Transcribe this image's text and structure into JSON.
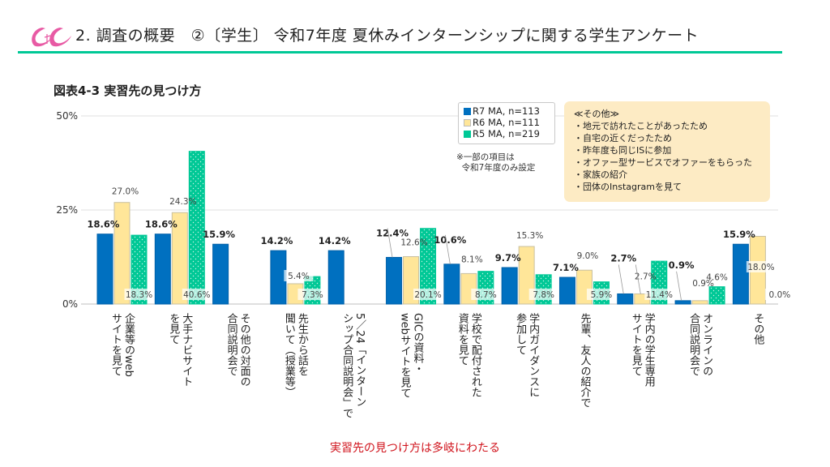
{
  "header": {
    "title": "2. 調査の概要　②〔学生〕 令和7年度  夏休みインターンシップに関する学生アンケート",
    "logo_icon": "pink-swirl-logo-icon"
  },
  "figure_title": "図表4-3  実習先の見つけ方",
  "legend": {
    "items": [
      {
        "label": "R7 MA, n=113",
        "color": "#0070c0"
      },
      {
        "label": "R6 MA, n=111",
        "color": "#ffe699"
      },
      {
        "label": "R5 MA, n=219",
        "color": "#00c896"
      }
    ]
  },
  "note": "※一部の項目は\n  令和7年度のみ設定",
  "other_box": {
    "title": "≪その他≫",
    "items": [
      "・地元で訪れたことがあったため",
      "・自宅の近くだったため",
      "・昨年度も同じISに参加",
      "・オファー型サービスでオファーをもらった",
      "・家族の紹介",
      "・団体のInstagramを見て"
    ]
  },
  "bottom_note": "実習先の見つけ方は多岐にわたる",
  "chart_data": {
    "type": "bar",
    "title": "図表4-3 実習先の見つけ方",
    "xlabel": "",
    "ylabel": "",
    "ylim": [
      0,
      50
    ],
    "yticks": [
      "0%",
      "25%",
      "50%"
    ],
    "ytick_values": [
      0,
      25,
      50
    ],
    "grid": true,
    "legend_position": "top-right",
    "categories": [
      "企業等のweb\nサイトを見て",
      "大手ナビサイト\nを見て",
      "その他の対面の\n合同説明会で",
      "先生から話を\n聞いて（授業等）",
      "5／24「インターン\nシップ合同説明会」で",
      "GICの資料・\nwebサイトを見て",
      "学校で配付された\n資料を見て",
      "学内ガイダンスに\n参加して",
      "先輩、友人の紹介で",
      "学内の学生専用\nサイトを見て",
      "オンラインの\n合同説明会で",
      "その他"
    ],
    "series": [
      {
        "name": "R7 MA, n=113",
        "color": "#0070c0",
        "values": [
          18.6,
          18.6,
          15.9,
          14.2,
          14.2,
          12.4,
          10.6,
          9.7,
          7.1,
          2.7,
          0.9,
          15.9
        ],
        "labels": [
          "18.6%",
          "18.6%",
          "15.9%",
          "14.2%",
          "14.2%",
          "12.4%",
          "10.6%",
          "9.7%",
          "7.1%",
          "2.7%",
          "0.9%",
          "15.9%"
        ]
      },
      {
        "name": "R6 MA, n=111",
        "color": "#ffe699",
        "values": [
          27.0,
          24.3,
          null,
          5.4,
          null,
          12.6,
          8.1,
          15.3,
          9.0,
          2.7,
          0.9,
          18.0
        ],
        "labels": [
          "27.0%",
          "24.3%",
          "",
          "5.4%",
          "",
          "12.6%",
          "8.1%",
          "15.3%",
          "9.0%",
          "2.7%",
          "0.9%",
          "18.0%"
        ]
      },
      {
        "name": "R5 MA, n=219",
        "color": "#00c896",
        "values": [
          18.3,
          40.6,
          null,
          7.3,
          null,
          20.1,
          8.7,
          7.8,
          5.9,
          11.4,
          4.6,
          0.0
        ],
        "labels": [
          "18.3%",
          "40.6%",
          "",
          "7.3%",
          "",
          "20.1%",
          "8.7%",
          "7.8%",
          "5.9%",
          "11.4%",
          "4.6%",
          "0.0%"
        ]
      }
    ]
  }
}
